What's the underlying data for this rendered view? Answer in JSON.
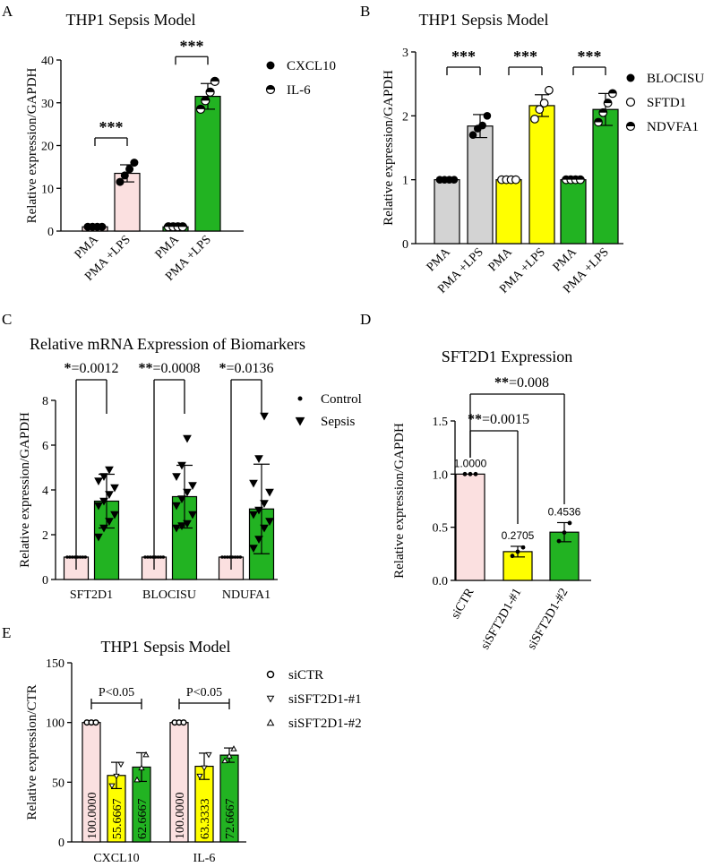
{
  "colors": {
    "pink": "#fbe0e0",
    "gray": "#d3d3d3",
    "yellow": "#ffff00",
    "green": "#22b322",
    "red_label": "#ff0000",
    "black": "#000000"
  },
  "chart_data": [
    {
      "id": "A",
      "type": "bar",
      "letter": "A",
      "title": "THP1 Sepsis Model",
      "ylabel": "Relative expression/GAPDH",
      "xlabel": "",
      "ylim": [
        0,
        40
      ],
      "yticks": [
        "0",
        "10",
        "20",
        "30",
        "40"
      ],
      "categories": [
        "PMA",
        "PMA +LPS",
        "PMA",
        "PMA +LPS"
      ],
      "values": [
        1,
        13.5,
        1,
        31.5
      ],
      "errors": [
        0,
        2.0,
        0,
        3.0
      ],
      "points": [
        [
          1,
          1,
          1,
          1
        ],
        [
          11.5,
          13,
          14.5,
          16
        ],
        [
          1,
          1,
          1,
          1
        ],
        [
          28.5,
          30.5,
          32.5,
          35
        ]
      ],
      "group_names": [
        "CXCL10",
        "CXCL10",
        "IL-6",
        "IL-6"
      ],
      "fills": [
        "pink",
        "pink",
        "green",
        "green"
      ],
      "legend": [
        {
          "label": "CXCL10",
          "marker": "filled-circle"
        },
        {
          "label": "IL-6",
          "marker": "half-circle"
        }
      ],
      "brackets": [
        {
          "from": 0,
          "to": 1,
          "label": "***"
        },
        {
          "from": 2,
          "to": 3,
          "label": "***"
        }
      ]
    },
    {
      "id": "B",
      "type": "bar",
      "letter": "B",
      "title": "THP1 Sepsis Model",
      "ylabel": "Relative expression/GAPDH",
      "xlabel": "",
      "ylim": [
        0,
        3
      ],
      "yticks": [
        "0",
        "1",
        "2",
        "3"
      ],
      "categories": [
        "PMA",
        "PMA +LPS",
        "PMA",
        "PMA +LPS",
        "PMA",
        "PMA +LPS"
      ],
      "values": [
        1,
        1.84,
        1,
        2.16,
        1,
        2.1
      ],
      "errors": [
        0,
        0.18,
        0,
        0.17,
        0,
        0.25
      ],
      "points": [
        [
          1,
          1,
          1,
          1
        ],
        [
          1.7,
          1.8,
          1.85,
          2.0
        ],
        [
          1,
          1,
          1,
          1
        ],
        [
          1.95,
          2.1,
          2.2,
          2.4
        ],
        [
          1,
          1,
          1,
          1
        ],
        [
          1.9,
          2.05,
          2.2,
          2.35
        ]
      ],
      "group_names": [
        "BLOCISU",
        "BLOCISU",
        "SFTD1",
        "SFTD1",
        "NDVFA1",
        "NDVFA1"
      ],
      "fills": [
        "gray",
        "gray",
        "yellow",
        "yellow",
        "green",
        "green"
      ],
      "legend": [
        {
          "label": "BLOCISU",
          "marker": "filled-circle"
        },
        {
          "label": "SFTD1",
          "marker": "open-circle"
        },
        {
          "label": "NDVFA1",
          "marker": "half-circle"
        }
      ],
      "brackets": [
        {
          "from": 0,
          "to": 1,
          "label": "***"
        },
        {
          "from": 2,
          "to": 3,
          "label": "***"
        },
        {
          "from": 4,
          "to": 5,
          "label": "***"
        }
      ]
    },
    {
      "id": "C",
      "type": "bar",
      "letter": "C",
      "title": "Relative mRNA Expression of Biomarkers",
      "ylabel": "Relative expression/GAPDH",
      "xlabel": "",
      "ylim": [
        0,
        8
      ],
      "yticks": [
        "0",
        "2",
        "4",
        "6",
        "8"
      ],
      "categories": [
        "SFT2D1",
        "BLOCISU",
        "NDUFA1"
      ],
      "series": [
        {
          "name": "Control",
          "values": [
            1,
            1,
            1
          ],
          "errors": [
            0,
            0,
            0
          ]
        },
        {
          "name": "Sepsis",
          "values": [
            3.5,
            3.7,
            3.15
          ],
          "errors": [
            1.2,
            1.4,
            2.0
          ]
        }
      ],
      "points_sepsis": [
        [
          1.9,
          2.3,
          2.6,
          2.9,
          3.3,
          3.5,
          3.8,
          4.1,
          4.4,
          4.6,
          4.9
        ],
        [
          2.3,
          2.4,
          2.5,
          2.9,
          3.3,
          3.6,
          3.9,
          4.2,
          4.6,
          5.1,
          6.3
        ],
        [
          1.4,
          1.8,
          2.3,
          2.6,
          2.9,
          3.1,
          3.4,
          3.9,
          4.3,
          5.4,
          7.3
        ]
      ],
      "fills": [
        "pink",
        "green"
      ],
      "legend": [
        {
          "label": "Control",
          "marker": "dot"
        },
        {
          "label": "Sepsis",
          "marker": "triangle-down"
        }
      ],
      "significance": [
        {
          "stars": "*",
          "text": "=0.0012"
        },
        {
          "stars": "**",
          "text": "=0.0008"
        },
        {
          "stars": "*",
          "text": "=0.0136"
        }
      ]
    },
    {
      "id": "D",
      "type": "bar",
      "letter": "D",
      "title": "SFT2D1 Expression",
      "ylabel": "Relative expression/GAPDH",
      "xlabel": "",
      "ylim": [
        0,
        1.5
      ],
      "yticks": [
        "0.0",
        "0.5",
        "1.0",
        "1.5"
      ],
      "categories": [
        "siCTR",
        "siSFT2D1-#1",
        "siSFT2D1-#2"
      ],
      "values": [
        1.0,
        0.2705,
        0.4536
      ],
      "value_labels": [
        "1.0000",
        "0.2705",
        "0.4536"
      ],
      "errors": [
        0,
        0.05,
        0.09
      ],
      "points": [
        [
          1,
          1,
          1
        ],
        [
          0.23,
          0.27,
          0.31
        ],
        [
          0.37,
          0.45,
          0.54
        ]
      ],
      "fills": [
        "pink",
        "yellow",
        "green"
      ],
      "brackets": [
        {
          "from": 0,
          "to": 1,
          "stars": "**",
          "text": "=0.0015"
        },
        {
          "from": 0,
          "to": 2,
          "stars": "**",
          "text": "=0.008"
        }
      ]
    },
    {
      "id": "E",
      "type": "bar",
      "letter": "E",
      "title": "THP1 Sepsis Model",
      "ylabel": "Relative expression/CTR",
      "xlabel": "",
      "ylim": [
        0,
        150
      ],
      "yticks": [
        "0",
        "50",
        "100",
        "150"
      ],
      "categories": [
        "CXCL10",
        "IL-6"
      ],
      "series": [
        {
          "name": "siCTR",
          "values": [
            100.0,
            100.0
          ],
          "value_labels": [
            "100.0000",
            "100.0000"
          ],
          "errors": [
            0,
            0
          ]
        },
        {
          "name": "siSFT2D1-#1",
          "values": [
            55.6667,
            63.3333
          ],
          "value_labels": [
            "55.6667",
            "63.3333"
          ],
          "errors": [
            11,
            11
          ]
        },
        {
          "name": "siSFT2D1-#2",
          "values": [
            62.6667,
            72.6667
          ],
          "value_labels": [
            "62.6667",
            "72.6667"
          ],
          "errors": [
            12,
            6
          ]
        }
      ],
      "points": [
        [
          [
            100,
            100,
            100
          ],
          [
            47,
            55,
            65
          ],
          [
            52,
            62,
            73
          ]
        ],
        [
          [
            100,
            100,
            100
          ],
          [
            55,
            62,
            73
          ],
          [
            68,
            72,
            78
          ]
        ]
      ],
      "fills": [
        "pink",
        "yellow",
        "green"
      ],
      "legend": [
        {
          "label": "siCTR",
          "marker": "small-circle"
        },
        {
          "label": "siSFT2D1-#1",
          "marker": "small-triangle-down"
        },
        {
          "label": "siSFT2D1-#2",
          "marker": "small-triangle-up"
        }
      ],
      "significance": [
        {
          "text": "P<0.05"
        },
        {
          "text": "P<0.05"
        }
      ]
    }
  ]
}
